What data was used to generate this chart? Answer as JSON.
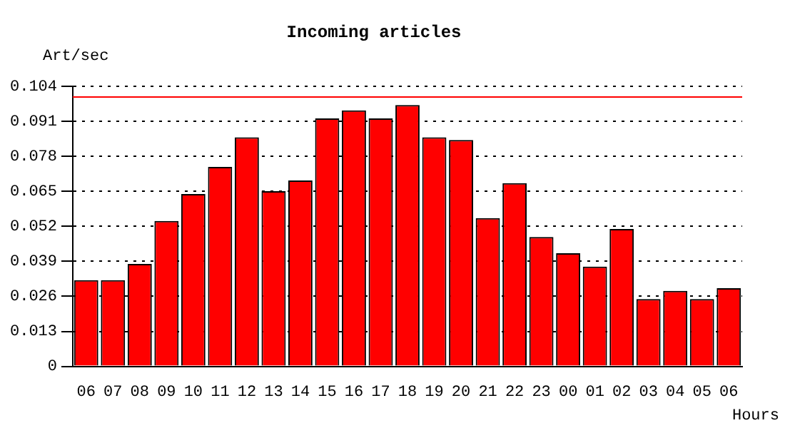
{
  "chart_data": {
    "type": "bar",
    "title": "Incoming articles",
    "ylabel": "Art/sec",
    "xlabel": "Hours",
    "categories": [
      "06",
      "07",
      "08",
      "09",
      "10",
      "11",
      "12",
      "13",
      "14",
      "15",
      "16",
      "17",
      "18",
      "19",
      "20",
      "21",
      "22",
      "23",
      "00",
      "01",
      "02",
      "03",
      "04",
      "05",
      "06"
    ],
    "values": [
      0.032,
      0.032,
      0.038,
      0.054,
      0.064,
      0.074,
      0.085,
      0.065,
      0.069,
      0.092,
      0.095,
      0.092,
      0.097,
      0.085,
      0.084,
      0.055,
      0.068,
      0.048,
      0.042,
      0.037,
      0.051,
      0.025,
      0.028,
      0.025,
      0.029
    ],
    "color": "#ff0000",
    "ylim": [
      0,
      0.104
    ],
    "yticks": [
      0,
      0.013,
      0.026,
      0.039,
      0.052,
      0.065,
      0.078,
      0.091,
      0.104
    ],
    "ref_lines": [
      {
        "axis": "y",
        "value": 0.1,
        "color": "#ff0000"
      }
    ],
    "grid": "y"
  }
}
